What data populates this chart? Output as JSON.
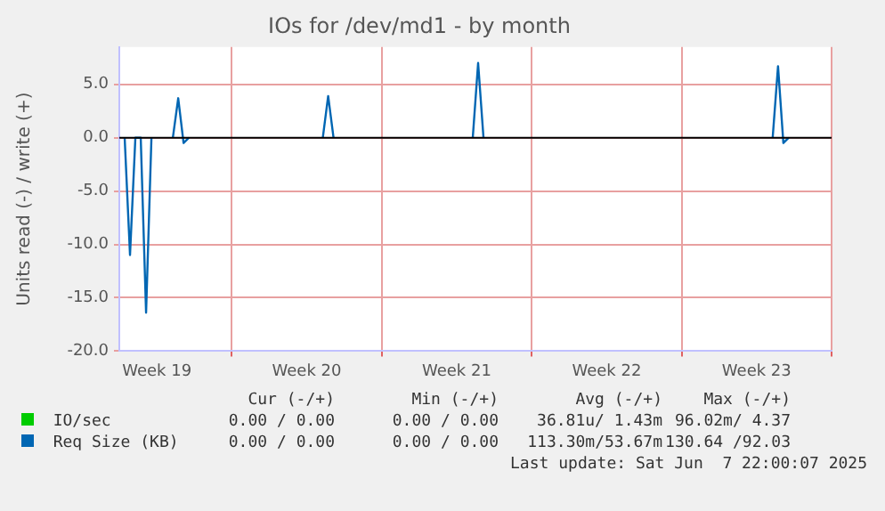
{
  "chart_data": {
    "type": "line",
    "title": "IOs for /dev/md1 - by month",
    "ylabel": "Units read (-) / write (+)",
    "categories": [
      null,
      null,
      null,
      null,
      null,
      null,
      null,
      "Week 19",
      null,
      null,
      null,
      null,
      null,
      null,
      null,
      null,
      null,
      null,
      null,
      null,
      null,
      null,
      null,
      null,
      null,
      null,
      null,
      null,
      null,
      null,
      null,
      null,
      null,
      null,
      null,
      "Week 20",
      null,
      null,
      null,
      null,
      null,
      null,
      null,
      null,
      null,
      null,
      null,
      null,
      null,
      null,
      null,
      null,
      null,
      null,
      null,
      null,
      null,
      null,
      null,
      null,
      null,
      null,
      null,
      "Week 21",
      null,
      null,
      null,
      null,
      null,
      null,
      null,
      null,
      null,
      null,
      null,
      null,
      null,
      null,
      null,
      null,
      null,
      null,
      null,
      null,
      null,
      null,
      null,
      null,
      null,
      null,
      null,
      "Week 22",
      null,
      null,
      null,
      null,
      null,
      null,
      null,
      null,
      null,
      null,
      null,
      null,
      null,
      null,
      null,
      null,
      null,
      null,
      null,
      null,
      null,
      null,
      null,
      null,
      null,
      null,
      null,
      "Week 23",
      null,
      null,
      null,
      null,
      null,
      null,
      null,
      null,
      null,
      null,
      null,
      null,
      null,
      null
    ],
    "ylim": [
      -20,
      8.5
    ],
    "yticks": [
      {
        "value": -20,
        "label": "-20.0"
      },
      {
        "value": -15,
        "label": "-15.0"
      },
      {
        "value": -10,
        "label": "-10.0"
      },
      {
        "value": -5,
        "label": "-5.0"
      },
      {
        "value": 0,
        "label": "0.0"
      },
      {
        "value": 5,
        "label": "5.0"
      }
    ],
    "grid": true,
    "legend": "bottom",
    "marker": "none",
    "line_style": "solid",
    "ref_lines": [
      {
        "axis": "y",
        "value": 0,
        "color": "#000000"
      }
    ],
    "series": [
      {
        "name": "IO/sec",
        "color": "#00cc00",
        "values": [
          null,
          null,
          null,
          null,
          null,
          null,
          null,
          null,
          null,
          null,
          null,
          null,
          null,
          null,
          null,
          null,
          null,
          null,
          null,
          null,
          null,
          null,
          null,
          null,
          null,
          null,
          null,
          null,
          null,
          null,
          null,
          null,
          null,
          null,
          null,
          null,
          null,
          null,
          null,
          null,
          null,
          null,
          null,
          null,
          null,
          null,
          null,
          null,
          null,
          null,
          null,
          null,
          null,
          null,
          null,
          null,
          null,
          null,
          null,
          null,
          null,
          null,
          null,
          null,
          null,
          null,
          null,
          null,
          null,
          null,
          null,
          null,
          null,
          null,
          null,
          null,
          null,
          null,
          null,
          null,
          null,
          null,
          null,
          null,
          null,
          null,
          null,
          null,
          null,
          null,
          null,
          null,
          null,
          null,
          null,
          null,
          null,
          null,
          null,
          null,
          null,
          null,
          null,
          null,
          null,
          null,
          null,
          null,
          null,
          null,
          null,
          null,
          null,
          null,
          null,
          null,
          null,
          null,
          null,
          null,
          null,
          null,
          null,
          null,
          null,
          null,
          null,
          null,
          null,
          null,
          null,
          null,
          null,
          null
        ]
      },
      {
        "name": "Req Size (KB)",
        "color": "#0066b3",
        "values": [
          null,
          0,
          -11,
          0,
          0,
          -16.4,
          0,
          null,
          null,
          null,
          0,
          3.7,
          -0.5,
          0,
          null,
          null,
          null,
          null,
          null,
          null,
          null,
          null,
          null,
          null,
          null,
          null,
          null,
          null,
          null,
          null,
          null,
          null,
          null,
          null,
          null,
          null,
          null,
          null,
          0,
          3.9,
          0,
          null,
          null,
          null,
          null,
          null,
          null,
          null,
          null,
          null,
          null,
          null,
          null,
          null,
          null,
          null,
          null,
          null,
          null,
          null,
          null,
          null,
          null,
          null,
          null,
          null,
          0,
          7.0,
          0,
          null,
          null,
          null,
          null,
          null,
          null,
          null,
          null,
          null,
          null,
          null,
          null,
          null,
          null,
          null,
          null,
          null,
          null,
          null,
          null,
          null,
          null,
          null,
          null,
          null,
          null,
          null,
          null,
          null,
          null,
          null,
          null,
          null,
          null,
          null,
          null,
          null,
          null,
          null,
          null,
          null,
          null,
          null,
          null,
          null,
          null,
          null,
          null,
          null,
          null,
          null,
          null,
          null,
          0,
          6.7,
          -0.5,
          0,
          null,
          null,
          null,
          null,
          null,
          null,
          null,
          null
        ]
      }
    ],
    "annotations": [
      "Cur (-/+)",
      "Min (-/+)",
      "Avg (-/+)",
      "Max (-/+)",
      "0.00 / 0.00",
      "0.00 / 0.00",
      "36.81u/ 1.43m",
      "96.02m/ 4.37",
      "0.00 / 0.00",
      "0.00 / 0.00",
      "113.30m/53.67m",
      "130.64 /92.03",
      "Last update: Sat Jun  7 22:00:07 2025"
    ]
  }
}
